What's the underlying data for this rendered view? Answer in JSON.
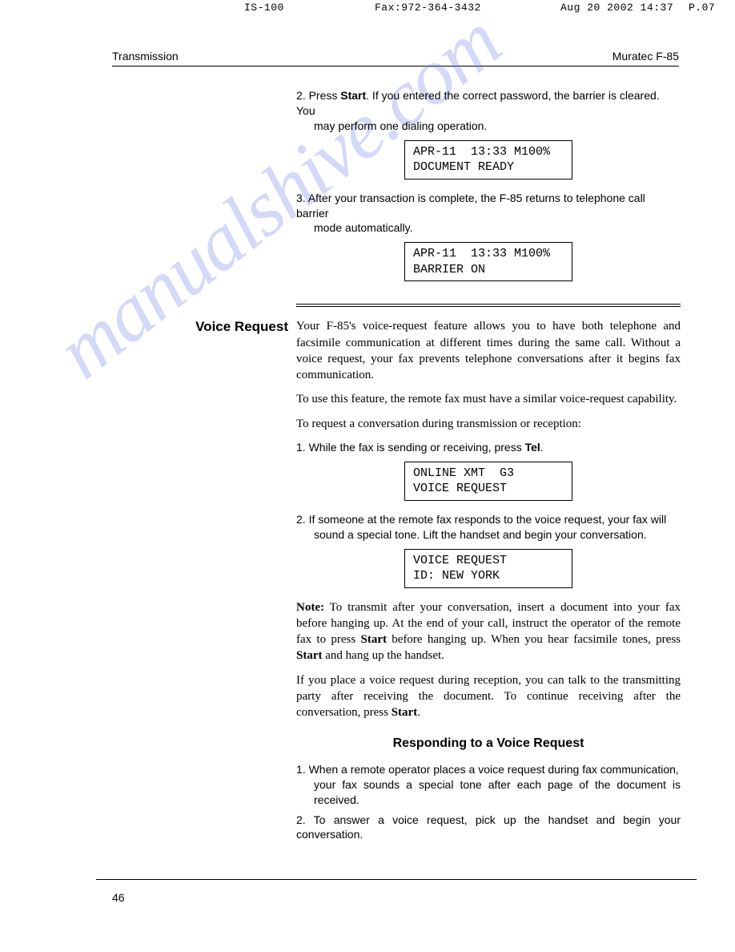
{
  "fax": {
    "sender": "IS-100",
    "faxnum": "Fax:972-364-3432",
    "date": "Aug 20 2002 14:37",
    "page": "P.07"
  },
  "header": {
    "left": "Transmission",
    "right": "Muratec F-85"
  },
  "watermark": "manualshive.com",
  "section1": {
    "step2_pre": "2. Press ",
    "step2_bold": "Start",
    "step2_post": ". If you entered the correct password, the barrier is cleared. You",
    "step2_line2": "may perform one dialing operation.",
    "lcd1_l1": "APR-11  13:33 M100%",
    "lcd1_l2": "DOCUMENT READY",
    "step3_l1": "3. After your transaction is complete, the F-85 returns to telephone call barrier",
    "step3_l2": "mode automatically.",
    "lcd2_l1": "APR-11  13:33 M100%",
    "lcd2_l2": "BARRIER ON"
  },
  "voice": {
    "heading": "Voice Request",
    "intro": "Your F-85's voice-request feature allows you to have both telephone and facsimile communication at different times during the same call. Without a voice request, your fax prevents telephone conversations after it begins fax communication.",
    "p2": "To use this feature, the remote fax must have a similar voice-request capability.",
    "p3": "To request a conversation during transmission or reception:",
    "step1_pre": "1. While the fax is sending or receiving, press ",
    "step1_bold": "Tel",
    "step1_post": ".",
    "lcd3_l1": "ONLINE XMT  G3",
    "lcd3_l2": "VOICE REQUEST",
    "step2": "2. If someone at the remote fax responds to the voice request, your fax will",
    "step2_l2": "sound a special tone. Lift the handset and begin your conversation.",
    "lcd4_l1": "VOICE REQUEST",
    "lcd4_l2": "ID: NEW YORK",
    "note_bold": "Note:",
    "note_body": " To transmit after your conversation, insert a document into your fax before hanging up. At the end of your call, instruct the operator of the remote fax to press ",
    "note_start1": "Start",
    "note_body2": " before hanging up. When you hear facsimile tones, press ",
    "note_start2": "Start",
    "note_body3": " and hang up the handset.",
    "p_after": "If you place a voice request during reception, you can talk to the transmitting party after receiving the document. To continue receiving after the conversation, press ",
    "p_after_bold": "Start",
    "p_after_post": ".",
    "sub_heading": "Responding to a Voice Request",
    "resp1_l1": "1. When a remote operator places a voice request during fax communication,",
    "resp1_l2": "your fax sounds a special tone after each page of the document is received.",
    "resp2": "2. To answer a voice request, pick up the handset and begin your conversation."
  },
  "page_number": "46"
}
